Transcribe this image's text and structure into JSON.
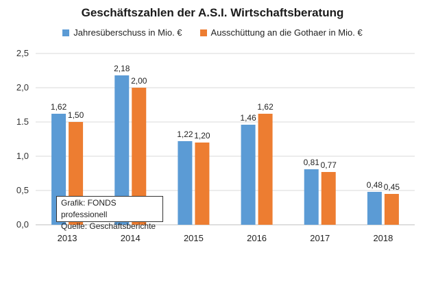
{
  "chart_data": {
    "type": "bar",
    "title": "Geschäftszahlen  der A.S.I. Wirtschaftsberatung",
    "categories": [
      "2013",
      "2014",
      "2015",
      "2016",
      "2017",
      "2018"
    ],
    "series": [
      {
        "name": "Jahresüberschuss in Mio. €",
        "values": [
          1.62,
          2.18,
          1.22,
          1.46,
          0.81,
          0.48
        ],
        "labels": [
          "1,62",
          "2,18",
          "1,22",
          "1,46",
          "0,81",
          "0,48"
        ],
        "color": "#5b9bd5"
      },
      {
        "name": "Ausschüttung an die Gothaer in Mio. €",
        "values": [
          1.5,
          2.0,
          1.2,
          1.62,
          0.77,
          0.45
        ],
        "labels": [
          "1,50",
          "2,00",
          "1,20",
          "1,62",
          "0,77",
          "0,45"
        ],
        "color": "#ed7d31"
      }
    ],
    "ylim": [
      0,
      2.5
    ],
    "yticks": [
      0,
      0.5,
      1.0,
      1.5,
      2.0,
      2.5
    ],
    "ytick_labels": [
      "0,0",
      "0,5",
      "1,0",
      "1.5",
      "2,0",
      "2,5"
    ],
    "grid": true,
    "legend_position": "top-center",
    "xlabel": "",
    "ylabel": ""
  },
  "credit": {
    "line1": "Grafik: FONDS professionell",
    "line2": "Quelle: Geschäftsberichte"
  },
  "colors": {
    "grid": "#d9d9d9",
    "axis": "#bfbfbf"
  }
}
